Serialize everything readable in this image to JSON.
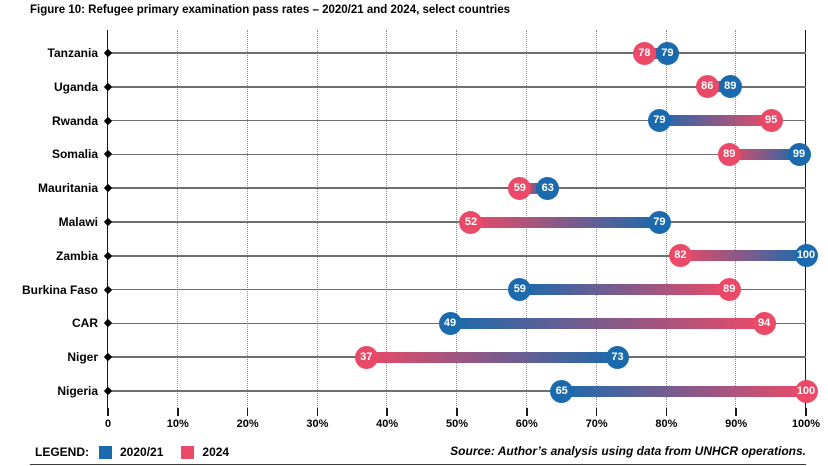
{
  "figure": {
    "label": "Figure 10:",
    "title": "Refugee primary examination pass rates – 2020/21 and 2024, select countries"
  },
  "chart_data": {
    "type": "dumbbell",
    "title": "Refugee primary examination pass rates – 2020/21 and 2024, select countries",
    "categories": [
      "Tanzania",
      "Uganda",
      "Rwanda",
      "Somalia",
      "Mauritania",
      "Malawi",
      "Zambia",
      "Burkina Faso",
      "CAR",
      "Niger",
      "Nigeria"
    ],
    "series": [
      {
        "name": "2020/21",
        "color": "#1b6aad",
        "values": [
          79,
          89,
          79,
          99,
          63,
          79,
          100,
          59,
          49,
          73,
          65
        ]
      },
      {
        "name": "2024",
        "color": "#ea4a67",
        "values": [
          78,
          86,
          95,
          89,
          59,
          52,
          82,
          89,
          94,
          37,
          100
        ]
      }
    ],
    "xlim": [
      0,
      100
    ],
    "xlabel_ticks": [
      "0",
      "10%",
      "20%",
      "30%",
      "40%",
      "50%",
      "60%",
      "70%",
      "80%",
      "90%",
      "100%"
    ],
    "grid": "vertical-dotted, solid edges at 0 and 100%",
    "legend_position": "bottom-left"
  },
  "legend": {
    "heading": "LEGEND:",
    "items": [
      {
        "label": "2020/21",
        "color": "#1b6aad"
      },
      {
        "label": "2024",
        "color": "#ea4a67"
      }
    ]
  },
  "source": "Source: Author’s analysis using data from UNHCR operations."
}
